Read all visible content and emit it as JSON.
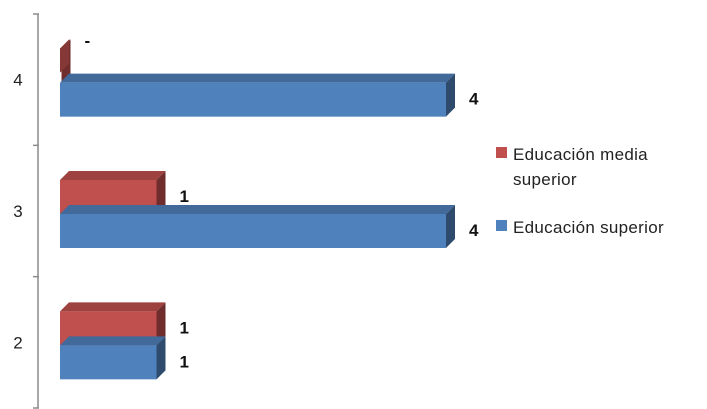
{
  "chart_data": {
    "type": "bar",
    "orientation": "horizontal",
    "categories": [
      "4",
      "3",
      "2"
    ],
    "series": [
      {
        "name": "Educación media superior",
        "color": "#c0504d",
        "values": [
          0,
          1,
          1
        ],
        "data_labels": [
          "-",
          "1",
          "1"
        ]
      },
      {
        "name": "Educación superior",
        "color": "#4f81bd",
        "values": [
          4,
          4,
          1
        ],
        "data_labels": [
          "4",
          "4",
          "1"
        ]
      }
    ],
    "xlim": [
      0,
      4
    ],
    "grid": false,
    "legend_position": "right",
    "style": "3d-clustered"
  },
  "legend": {
    "items": [
      {
        "label": "Educación media superior",
        "color": "#c0504d"
      },
      {
        "label": "Educación superior",
        "color": "#4f81bd"
      }
    ]
  }
}
